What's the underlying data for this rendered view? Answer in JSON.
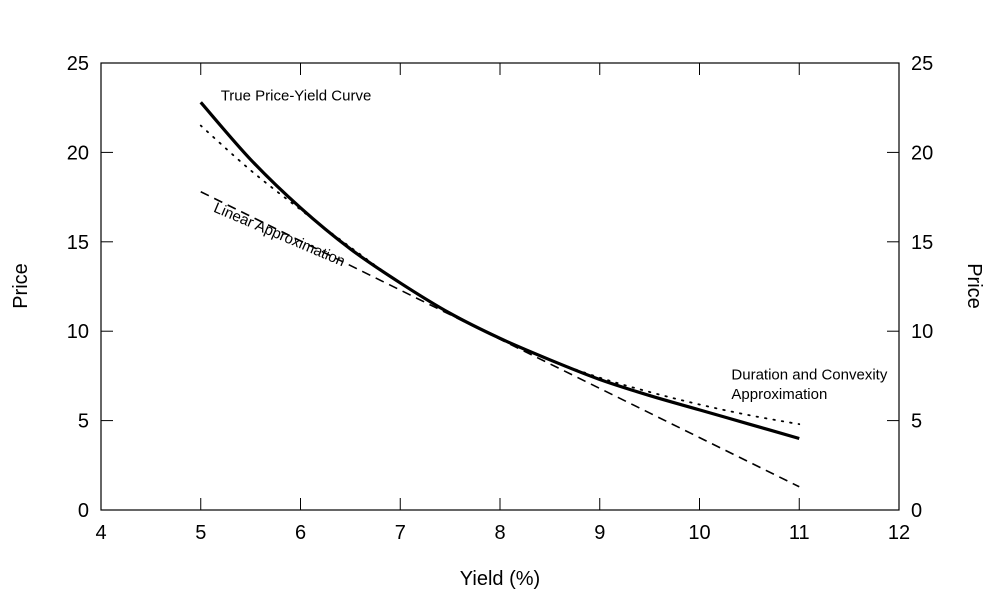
{
  "chart_data": {
    "type": "line",
    "title": "",
    "xlabel": "Yield (%)",
    "ylabel": "Price",
    "ylabel_right": "Price",
    "xlim": [
      4,
      12
    ],
    "ylim": [
      0,
      25
    ],
    "xticks": [
      "4",
      "5",
      "6",
      "7",
      "8",
      "9",
      "10",
      "11",
      "12"
    ],
    "yticks": [
      "0",
      "5",
      "10",
      "15",
      "20",
      "25"
    ],
    "grid": false,
    "series": [
      {
        "style": "solid",
        "x": [
          5,
          5.5,
          6,
          6.5,
          7,
          7.5,
          8,
          8.5,
          9,
          9.5,
          10,
          10.5,
          11
        ],
        "y": [
          22.8,
          19.6,
          16.9,
          14.6,
          12.7,
          11.0,
          9.6,
          8.4,
          7.3,
          6.4,
          5.6,
          4.8,
          4.0
        ]
      },
      {
        "style": "dashed",
        "x": [
          5,
          11
        ],
        "y": [
          17.8,
          1.3
        ]
      },
      {
        "style": "dotted",
        "x": [
          5,
          5.5,
          6,
          6.5,
          7,
          7.5,
          8,
          8.5,
          9,
          9.5,
          10,
          10.5,
          11
        ],
        "y": [
          21.5,
          19.0,
          16.8,
          14.7,
          12.7,
          11.0,
          9.6,
          8.4,
          7.4,
          6.6,
          5.9,
          5.3,
          4.8
        ]
      }
    ],
    "annotations": [
      {
        "text": "True Price-Yield Curve",
        "x": 5.2,
        "y": 22.9,
        "rotate": 0
      },
      {
        "text": "Linear Approximation",
        "x": 5.12,
        "y": 16.7,
        "rotate": 23
      },
      {
        "text": "Duration and Convexity",
        "x": 10.32,
        "y": 7.3,
        "rotate": 0
      },
      {
        "text": "Approximation",
        "x": 10.32,
        "y": 6.2,
        "rotate": 0
      }
    ]
  }
}
